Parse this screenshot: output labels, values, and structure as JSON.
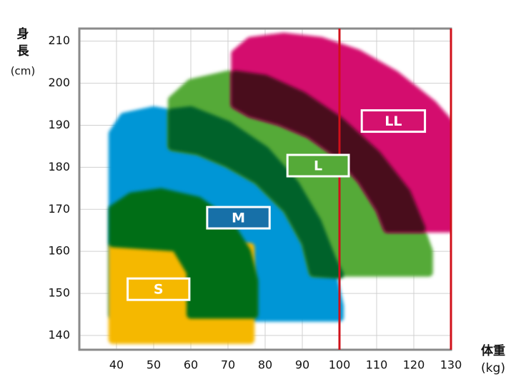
{
  "chart_data": {
    "type": "region",
    "y_label_lines": [
      "身",
      "長",
      "(cm)"
    ],
    "x_label_lines": [
      "体重",
      "(kg)"
    ],
    "xlim": [
      30,
      130
    ],
    "ylim": [
      136.6,
      213
    ],
    "xticks": [
      40,
      50,
      60,
      70,
      80,
      90,
      100,
      110,
      120,
      130
    ],
    "yticks": [
      140,
      150,
      160,
      170,
      180,
      190,
      200,
      210
    ],
    "grid": true,
    "reference_lines": [
      100,
      130
    ],
    "reference_color": "#d0101a",
    "regions": [
      {
        "color": "#0096d6",
        "points": [
          [
            39,
            145
          ],
          [
            39,
            188
          ],
          [
            42,
            192
          ],
          [
            50,
            193.5
          ],
          [
            60,
            192
          ],
          [
            70,
            188
          ],
          [
            80,
            181
          ],
          [
            88,
            173
          ],
          [
            94,
            164
          ],
          [
            98,
            155
          ],
          [
            100,
            147
          ],
          [
            100,
            144.3
          ],
          [
            76,
            144.3
          ],
          [
            76,
            145
          ]
        ]
      },
      {
        "color": "#f5b800",
        "points": [
          [
            39,
            161
          ],
          [
            76,
            161
          ],
          [
            76,
            139
          ],
          [
            39,
            139
          ]
        ]
      },
      {
        "color": "#006e12",
        "points": [
          [
            39,
            162
          ],
          [
            39,
            170
          ],
          [
            44,
            173
          ],
          [
            52,
            174
          ],
          [
            62,
            172
          ],
          [
            70,
            167
          ],
          [
            75,
            160
          ],
          [
            77,
            153
          ],
          [
            77,
            145
          ],
          [
            60,
            145
          ],
          [
            60,
            155
          ],
          [
            56,
            161
          ]
        ]
      },
      {
        "color": "#55aa38",
        "points": [
          [
            55,
            185
          ],
          [
            55,
            196
          ],
          [
            60,
            200
          ],
          [
            70,
            202
          ],
          [
            80,
            201
          ],
          [
            90,
            197
          ],
          [
            100,
            191
          ],
          [
            110,
            183
          ],
          [
            118,
            174
          ],
          [
            122,
            165
          ],
          [
            124,
            160
          ],
          [
            124,
            155
          ],
          [
            93,
            155
          ],
          [
            91,
            162
          ],
          [
            86,
            170
          ],
          [
            78,
            177
          ],
          [
            70,
            181
          ],
          [
            62,
            184
          ]
        ]
      },
      {
        "color": "#02622b",
        "points": [
          [
            55,
            185
          ],
          [
            55,
            193
          ],
          [
            60,
            193.5
          ],
          [
            70,
            190
          ],
          [
            80,
            184
          ],
          [
            88,
            176
          ],
          [
            94,
            167
          ],
          [
            98,
            158
          ],
          [
            100,
            154.5
          ],
          [
            93,
            155
          ],
          [
            91,
            162
          ],
          [
            86,
            170
          ],
          [
            78,
            177
          ],
          [
            70,
            181
          ],
          [
            62,
            184
          ]
        ]
      },
      {
        "color": "#d4116e",
        "points": [
          [
            72,
            200
          ],
          [
            72,
            207
          ],
          [
            76,
            210
          ],
          [
            85,
            211
          ],
          [
            95,
            210
          ],
          [
            105,
            207
          ],
          [
            115,
            202
          ],
          [
            125,
            195
          ],
          [
            130,
            190
          ],
          [
            130,
            165.5
          ],
          [
            113,
            165.5
          ],
          [
            111,
            170
          ],
          [
            106,
            177
          ],
          [
            100,
            183
          ],
          [
            92,
            188
          ],
          [
            84,
            191
          ],
          [
            76,
            193
          ],
          [
            72,
            195
          ]
        ]
      },
      {
        "color": "#4a0f1e",
        "points": [
          [
            72,
            195
          ],
          [
            72,
            202
          ],
          [
            80,
            201
          ],
          [
            90,
            197
          ],
          [
            100,
            191
          ],
          [
            110,
            183
          ],
          [
            118,
            174
          ],
          [
            122,
            165.5
          ],
          [
            113,
            165.5
          ],
          [
            111,
            170
          ],
          [
            106,
            177
          ],
          [
            100,
            183
          ],
          [
            92,
            188
          ],
          [
            84,
            191
          ],
          [
            76,
            193
          ]
        ]
      }
    ],
    "size_labels": [
      {
        "text": "S",
        "x": [
          43,
          59.6
        ],
        "y": 151,
        "color": "#f5b800"
      },
      {
        "text": "M",
        "x": [
          64.4,
          81.2
        ],
        "y": 168,
        "color": "#1770a8"
      },
      {
        "text": "L",
        "x": [
          86,
          102.5
        ],
        "y": 180.4,
        "color": "#55aa38"
      },
      {
        "text": "LL",
        "x": [
          106,
          123
        ],
        "y": 191,
        "color": "#d4116e"
      }
    ]
  }
}
